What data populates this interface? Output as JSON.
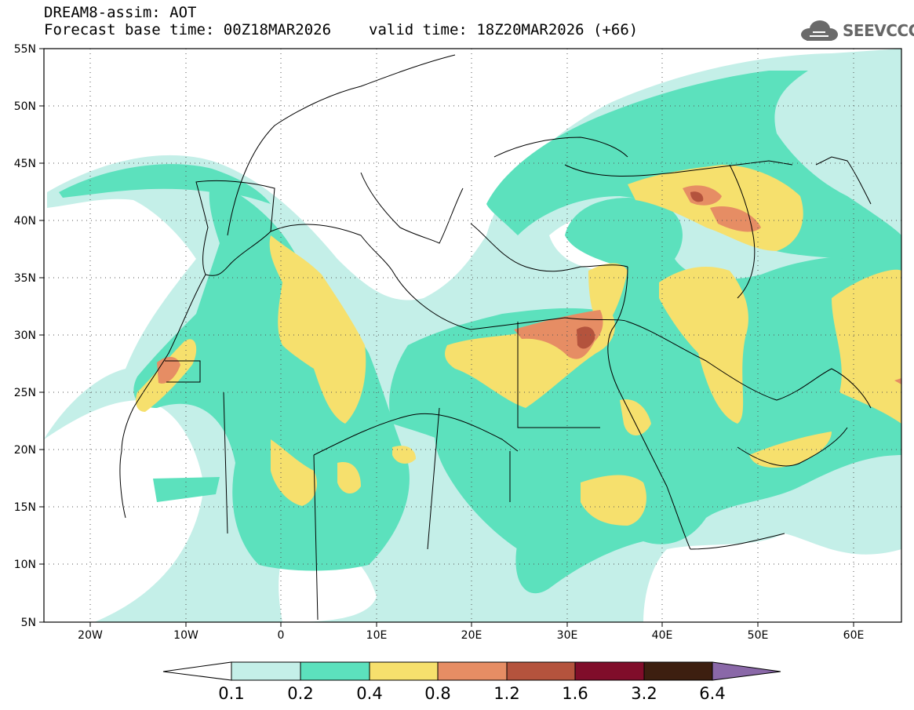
{
  "header": {
    "model_title": "DREAM8-assim: AOT",
    "base_time": "Forecast base time: 00Z18MAR2026",
    "valid_time": "valid time: 18Z20MAR2026 (+66)"
  },
  "logo": {
    "text": "SEEVCCC",
    "icon": "cloud-icon"
  },
  "map": {
    "lat_labels": [
      "55N",
      "50N",
      "45N",
      "40N",
      "35N",
      "30N",
      "25N",
      "20N",
      "15N",
      "10N",
      "5N"
    ],
    "lon_labels": [
      "20W",
      "10W",
      "0",
      "10E",
      "20E",
      "30E",
      "40E",
      "50E",
      "60E"
    ]
  },
  "colorbar": {
    "colors": [
      "#ffffff",
      "#c4efe8",
      "#5ce1bd",
      "#f6e06d",
      "#e68d64",
      "#b4533d",
      "#800d2a",
      "#3d1f10",
      "#8a68a8"
    ],
    "labels": [
      "0.1",
      "0.2",
      "0.4",
      "0.8",
      "1.2",
      "1.6",
      "3.2",
      "6.4"
    ]
  }
}
